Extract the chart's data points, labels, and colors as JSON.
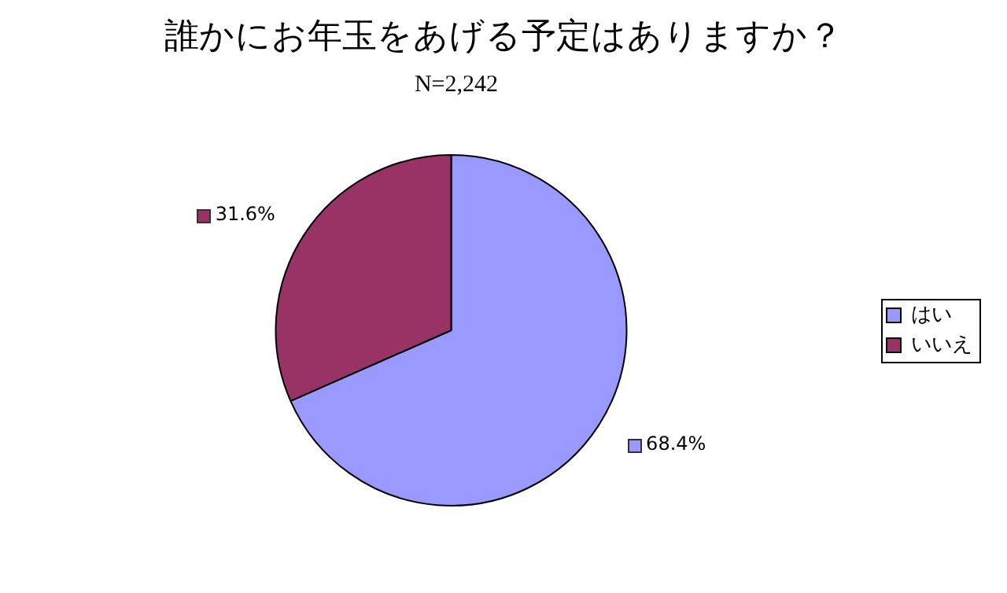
{
  "chart_data": {
    "type": "pie",
    "title": "誰かにお年玉をあげる予定はありますか？",
    "subtitle": "N=2,242",
    "categories": [
      "はい",
      "いいえ"
    ],
    "values": [
      68.4,
      31.6
    ],
    "colors": [
      "#9999ff",
      "#993366"
    ],
    "value_labels": [
      "68.4%",
      "31.6%"
    ],
    "legend": "right"
  }
}
